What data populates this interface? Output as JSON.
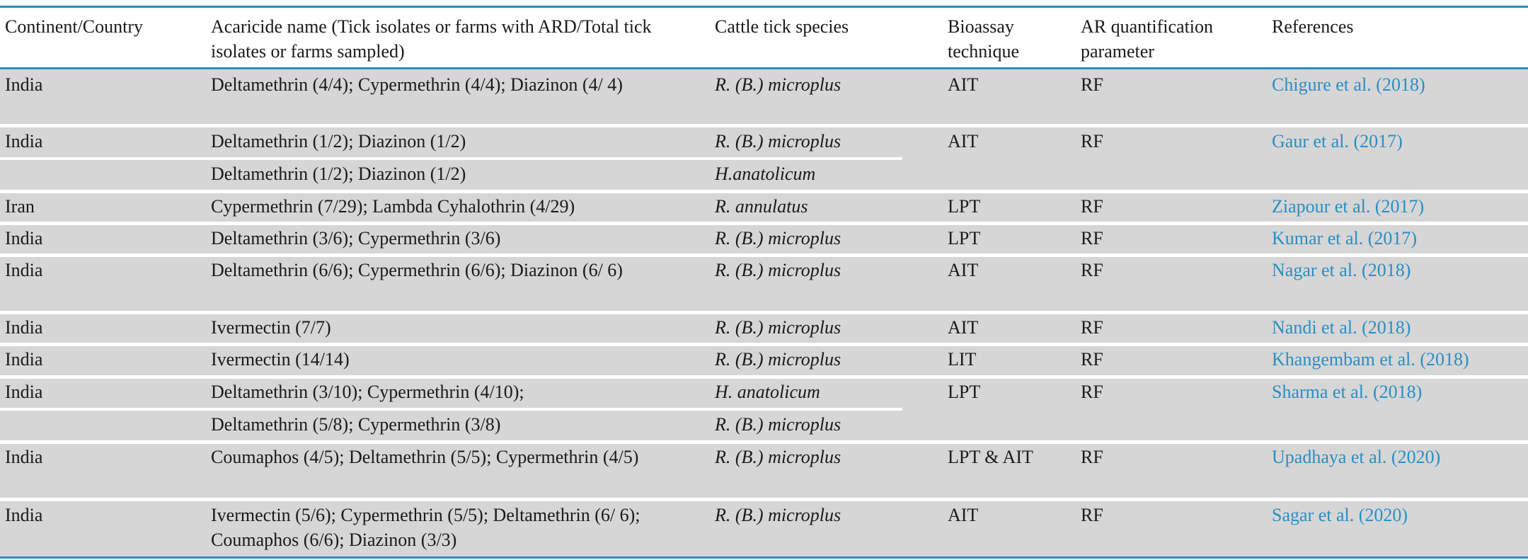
{
  "header": {
    "continent": "Continent/Country",
    "acaricide": "Acaricide name (Tick isolates or farms with ARD/Total tick isolates or farms sampled)",
    "species": "Cattle tick species",
    "bioassay": "Bioassay technique",
    "ar_param": "AR quantification parameter",
    "references": "References"
  },
  "rows": [
    {
      "country": "India",
      "acaricide": "Deltamethrin (4/4); Cypermethrin (4/4); Diazinon (4/ 4)",
      "species": "R. (B.) microplus",
      "bioassay": "AIT",
      "param": "RF",
      "ref": "Chigure et al. (2018)"
    },
    {
      "country": "India",
      "acaricide": "Deltamethrin (1/2); Diazinon (1/2)",
      "species": "R. (B.) microplus",
      "acaricide2": "Deltamethrin (1/2); Diazinon (1/2)",
      "species2": "H.anatolicum",
      "bioassay": "AIT",
      "param": "RF",
      "ref": "Gaur et al. (2017)"
    },
    {
      "country": "Iran",
      "acaricide": "Cypermethrin (7/29); Lambda Cyhalothrin (4/29)",
      "species": "R. annulatus",
      "bioassay": "LPT",
      "param": "RF",
      "ref": "Ziapour et al. (2017)"
    },
    {
      "country": "India",
      "acaricide": "Deltamethrin (3/6); Cypermethrin (3/6)",
      "species": "R. (B.) microplus",
      "bioassay": "LPT",
      "param": "RF",
      "ref": "Kumar et al. (2017)"
    },
    {
      "country": "India",
      "acaricide": "Deltamethrin (6/6); Cypermethrin (6/6); Diazinon (6/ 6)",
      "species": "R. (B.) microplus",
      "bioassay": "AIT",
      "param": "RF",
      "ref": "Nagar et al. (2018)"
    },
    {
      "country": "India",
      "acaricide": "Ivermectin (7/7)",
      "species": "R. (B.) microplus",
      "bioassay": "AIT",
      "param": "RF",
      "ref": "Nandi et al. (2018)"
    },
    {
      "country": "India",
      "acaricide": "Ivermectin (14/14)",
      "species": "R. (B.) microplus",
      "bioassay": "LIT",
      "param": "RF",
      "ref": "Khangembam et al. (2018)"
    },
    {
      "country": "India",
      "acaricide": "Deltamethrin (3/10); Cypermethrin (4/10);",
      "species": "H. anatolicum",
      "acaricide2": "Deltamethrin (5/8); Cypermethrin (3/8)",
      "species2": "R. (B.) microplus",
      "bioassay": "LPT",
      "param": "RF",
      "ref": "Sharma et al. (2018)"
    },
    {
      "country": "India",
      "acaricide": "Coumaphos (4/5); Deltamethrin (5/5); Cypermethrin (4/5)",
      "species": "R. (B.) microplus",
      "bioassay": "LPT & AIT",
      "param": "RF",
      "ref": "Upadhaya et al. (2020)"
    },
    {
      "country": "India",
      "acaricide": "Ivermectin (5/6); Cypermethrin (5/5); Deltamethrin (6/ 6); Coumaphos (6/6); Diazinon (3/3)",
      "species": "R. (B.) microplus",
      "bioassay": "AIT",
      "param": "RF",
      "ref": "Sagar et al. (2020)"
    }
  ],
  "colors": {
    "rule": "#2a8dbf",
    "row_bg": "#d6d6d6",
    "link": "#2a8fc4"
  }
}
